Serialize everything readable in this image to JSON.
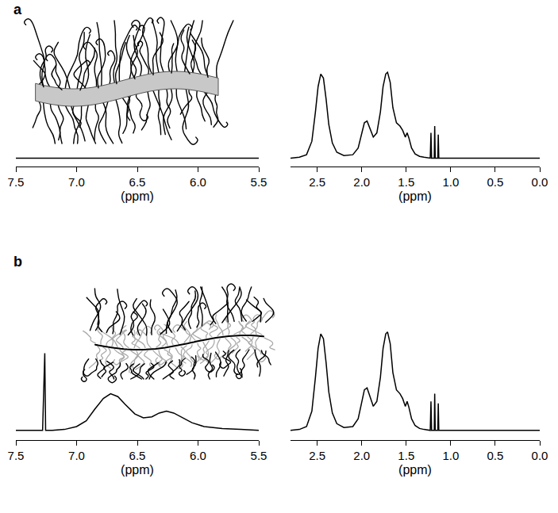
{
  "chart_data": [
    {
      "panel": "a",
      "type": "line",
      "x_label": "(ppm)",
      "color": "#000000",
      "tick_labels": "x",
      "x": [
        7.5,
        7.0,
        6.5,
        6.0,
        5.5
      ],
      "values": [
        0,
        0,
        0,
        0,
        0
      ],
      "xlim": [
        7.5,
        5.5
      ],
      "xticks": [
        7.5,
        {
          "value": 7,
          "label": "7.0"
        },
        6.5,
        {
          "value": 6,
          "label": "6.0"
        },
        5.5
      ],
      "ylim": [
        -0.1,
        1.05
      ]
    },
    {
      "type": "line",
      "x_label": "(ppm)",
      "color": "#000000",
      "tick_labels": "x",
      "x": [
        2.8,
        2.7,
        2.62,
        2.56,
        2.52,
        2.49,
        2.46,
        2.43,
        2.4,
        2.37,
        2.33,
        2.28,
        2.2,
        2.1,
        2.04,
        2.0,
        1.97,
        1.94,
        1.91,
        1.87,
        1.83,
        1.79,
        1.76,
        1.73,
        1.71,
        1.68,
        1.65,
        1.61,
        1.57,
        1.54,
        1.51,
        1.49,
        1.47,
        1.44,
        1.4,
        1.35,
        1.3,
        1.23,
        1.222,
        1.215,
        1.185,
        1.18,
        1.174,
        1.145,
        1.14,
        1.134,
        1.1,
        0.8,
        0.5,
        0.3,
        0.0
      ],
      "values": [
        0,
        0.01,
        0.04,
        0.2,
        0.55,
        0.85,
        1.0,
        0.95,
        0.7,
        0.4,
        0.18,
        0.07,
        0.03,
        0.04,
        0.12,
        0.3,
        0.42,
        0.44,
        0.36,
        0.25,
        0.3,
        0.55,
        0.85,
        1.0,
        1.02,
        0.9,
        0.6,
        0.42,
        0.38,
        0.33,
        0.25,
        0.3,
        0.24,
        0.12,
        0.05,
        0.02,
        0.01,
        0,
        0.3,
        0,
        0,
        0.38,
        0,
        0,
        0.28,
        0,
        0,
        0,
        0,
        0,
        0
      ],
      "xlim": [
        2.8,
        0
      ],
      "xticks": [
        2.5,
        {
          "value": 2,
          "label": "2.0"
        },
        1.5,
        {
          "value": 1,
          "label": "1.0"
        },
        0.5,
        {
          "value": 0,
          "label": "0.0"
        }
      ],
      "ylim": [
        -0.1,
        1.05
      ]
    },
    {
      "panel": "b",
      "type": "line",
      "x_label": "(ppm)",
      "color": "#000000",
      "tick_labels": "x",
      "x": [
        7.5,
        7.35,
        7.28,
        7.262,
        7.255,
        7.2,
        7.1,
        7.0,
        6.92,
        6.85,
        6.78,
        6.72,
        6.66,
        6.6,
        6.52,
        6.45,
        6.38,
        6.32,
        6.26,
        6.2,
        6.12,
        6.05,
        5.95,
        5.8,
        5.65,
        5.5
      ],
      "values": [
        0,
        0,
        0,
        0.8,
        0,
        0,
        0.01,
        0.04,
        0.1,
        0.22,
        0.33,
        0.38,
        0.35,
        0.27,
        0.17,
        0.13,
        0.14,
        0.18,
        0.2,
        0.18,
        0.13,
        0.08,
        0.04,
        0.02,
        0.01,
        0
      ],
      "xlim": [
        7.5,
        5.5
      ],
      "xticks": [
        7.5,
        {
          "value": 7,
          "label": "7.0"
        },
        6.5,
        {
          "value": 6,
          "label": "6.0"
        },
        5.5
      ],
      "ylim": [
        -0.1,
        1.05
      ]
    },
    {
      "type": "line",
      "x_label": "(ppm)",
      "color": "#000000",
      "tick_labels": "x",
      "x": [
        2.8,
        2.7,
        2.62,
        2.56,
        2.52,
        2.49,
        2.46,
        2.43,
        2.4,
        2.37,
        2.33,
        2.28,
        2.2,
        2.1,
        2.04,
        2.0,
        1.97,
        1.94,
        1.91,
        1.87,
        1.83,
        1.79,
        1.76,
        1.73,
        1.71,
        1.68,
        1.65,
        1.61,
        1.57,
        1.54,
        1.51,
        1.49,
        1.47,
        1.44,
        1.4,
        1.35,
        1.3,
        1.23,
        1.222,
        1.215,
        1.185,
        1.18,
        1.174,
        1.145,
        1.14,
        1.134,
        1.1,
        0.8,
        0.5,
        0.3,
        0.0
      ],
      "values": [
        0,
        0.01,
        0.04,
        0.2,
        0.55,
        0.85,
        1.0,
        0.95,
        0.7,
        0.4,
        0.18,
        0.07,
        0.03,
        0.04,
        0.12,
        0.3,
        0.42,
        0.44,
        0.36,
        0.25,
        0.3,
        0.55,
        0.85,
        1.0,
        1.02,
        0.9,
        0.6,
        0.42,
        0.38,
        0.33,
        0.25,
        0.3,
        0.24,
        0.12,
        0.05,
        0.02,
        0.01,
        0,
        0.3,
        0,
        0,
        0.38,
        0,
        0,
        0.28,
        0,
        0,
        0,
        0,
        0,
        0
      ],
      "xlim": [
        2.8,
        0
      ],
      "xticks": [
        2.5,
        {
          "value": 2,
          "label": "2.0"
        },
        1.5,
        {
          "value": 1,
          "label": "1.0"
        },
        0.5,
        {
          "value": 0,
          "label": "0.0"
        }
      ],
      "ylim": [
        -0.1,
        1.05
      ]
    }
  ]
}
